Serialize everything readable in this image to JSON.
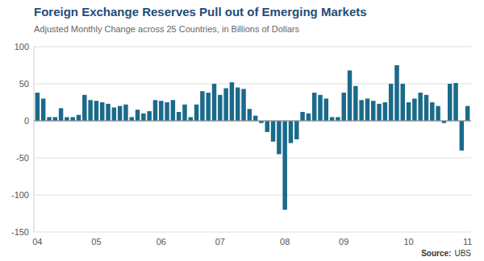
{
  "chart_data": {
    "type": "bar",
    "title": "Foreign Exchange Reserves Pull out of Emerging Markets",
    "subtitle": "Adjusted Monthly Change across 25 Countries, in Billions of Dollars",
    "source_label": "Source:",
    "source": "UBS",
    "categories": [
      "04",
      null,
      null,
      null,
      null,
      null,
      null,
      null,
      null,
      null,
      "05",
      null,
      null,
      null,
      null,
      null,
      null,
      null,
      null,
      null,
      null,
      "06",
      null,
      null,
      null,
      null,
      null,
      null,
      null,
      null,
      null,
      "07",
      null,
      null,
      null,
      null,
      null,
      null,
      null,
      null,
      null,
      null,
      "08",
      null,
      null,
      null,
      null,
      null,
      null,
      null,
      null,
      null,
      "09",
      null,
      null,
      null,
      null,
      null,
      null,
      null,
      null,
      null,
      null,
      "10",
      null,
      null,
      null,
      null,
      null,
      null,
      null,
      null,
      null,
      "11"
    ],
    "values": [
      38,
      30,
      5,
      5,
      17,
      5,
      5,
      8,
      35,
      28,
      27,
      25,
      23,
      18,
      20,
      22,
      5,
      15,
      10,
      13,
      28,
      27,
      25,
      28,
      12,
      22,
      5,
      22,
      40,
      38,
      50,
      35,
      44,
      52,
      45,
      43,
      16,
      7,
      -3,
      -15,
      -28,
      -45,
      -120,
      -30,
      -25,
      12,
      10,
      38,
      35,
      30,
      5,
      5,
      38,
      68,
      47,
      28,
      30,
      27,
      23,
      25,
      50,
      75,
      50,
      25,
      30,
      38,
      35,
      25,
      20,
      -3,
      50,
      51,
      -40,
      20
    ],
    "color": "#1a6a8a",
    "ylim": [
      -150,
      100
    ],
    "yticks": [
      -150,
      -100,
      -50,
      0,
      50,
      100
    ],
    "grid": true
  }
}
